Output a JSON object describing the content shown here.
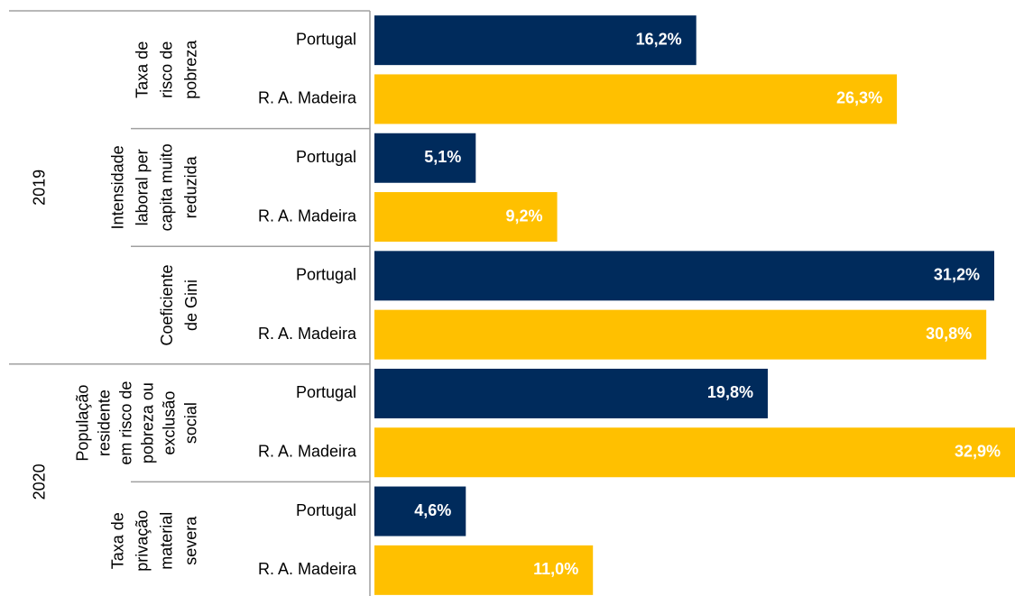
{
  "chart_data": {
    "type": "bar",
    "orientation": "horizontal",
    "category_groups": [
      "2019",
      "2019",
      "2019",
      "2020",
      "2020"
    ],
    "categories": [
      [
        "Taxa de",
        "risco de",
        "pobreza"
      ],
      [
        "Intensidade",
        "laboral per",
        "capita muito",
        "reduzida"
      ],
      [
        "Coeficiente",
        "de Gini"
      ],
      [
        "População",
        "residente",
        "em risco de",
        "pobreza ou",
        "exclusão",
        "social"
      ],
      [
        "Taxa de",
        "privação",
        "material",
        "severa"
      ]
    ],
    "series": [
      {
        "name": "Portugal",
        "color": "#002b5c",
        "values": [
          16.2,
          5.1,
          31.2,
          19.8,
          4.6
        ],
        "value_labels": [
          "16,2%",
          "5,1%",
          "31,2%",
          "19,8%",
          "4,6%"
        ]
      },
      {
        "name": "R. A. Madeira",
        "color": "#ffc000",
        "values": [
          26.3,
          9.2,
          30.8,
          32.9,
          11.0
        ],
        "value_labels": [
          "26,3%",
          "9,2%",
          "30,8%",
          "32,9%",
          "11,0%"
        ]
      }
    ],
    "xlim": [
      0,
      32.2
    ]
  }
}
